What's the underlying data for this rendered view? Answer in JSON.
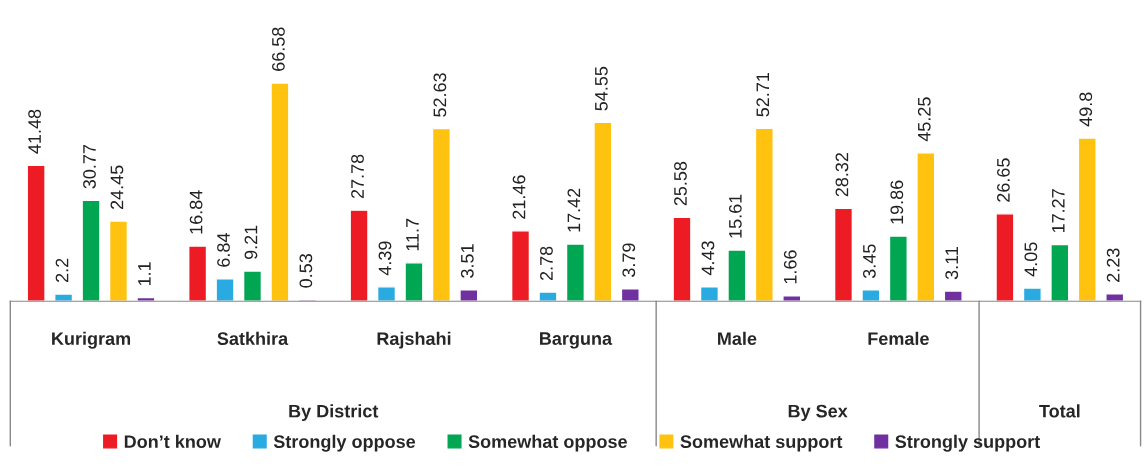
{
  "chart_data": {
    "type": "bar",
    "categories": [
      "Kurigram",
      "Satkhira",
      "Rajshahi",
      "Barguna",
      "Male",
      "Female",
      null
    ],
    "series": [
      {
        "name": "Don’t know",
        "color": "#ed1c24",
        "values": [
          41.48,
          16.84,
          27.78,
          21.46,
          25.58,
          28.32,
          26.65
        ]
      },
      {
        "name": "Strongly oppose",
        "color": "#29abe2",
        "values": [
          2.2,
          6.84,
          4.39,
          2.78,
          4.43,
          3.45,
          4.05
        ]
      },
      {
        "name": "Somewhat oppose",
        "color": "#00a651",
        "values": [
          30.77,
          9.21,
          11.7,
          17.42,
          15.61,
          19.86,
          17.27
        ]
      },
      {
        "name": "Somewhat support",
        "color": "#ffc20e",
        "values": [
          24.45,
          66.58,
          52.63,
          54.55,
          52.71,
          45.25,
          49.8
        ]
      },
      {
        "name": "Strongly support",
        "color": "#7030a0",
        "values": [
          1.1,
          0.53,
          3.51,
          3.79,
          1.66,
          3.11,
          2.23
        ]
      }
    ],
    "annotations": [
      "By District",
      "By Sex",
      "Total"
    ],
    "data_labels": true,
    "legend": "bottom",
    "grid": false
  }
}
